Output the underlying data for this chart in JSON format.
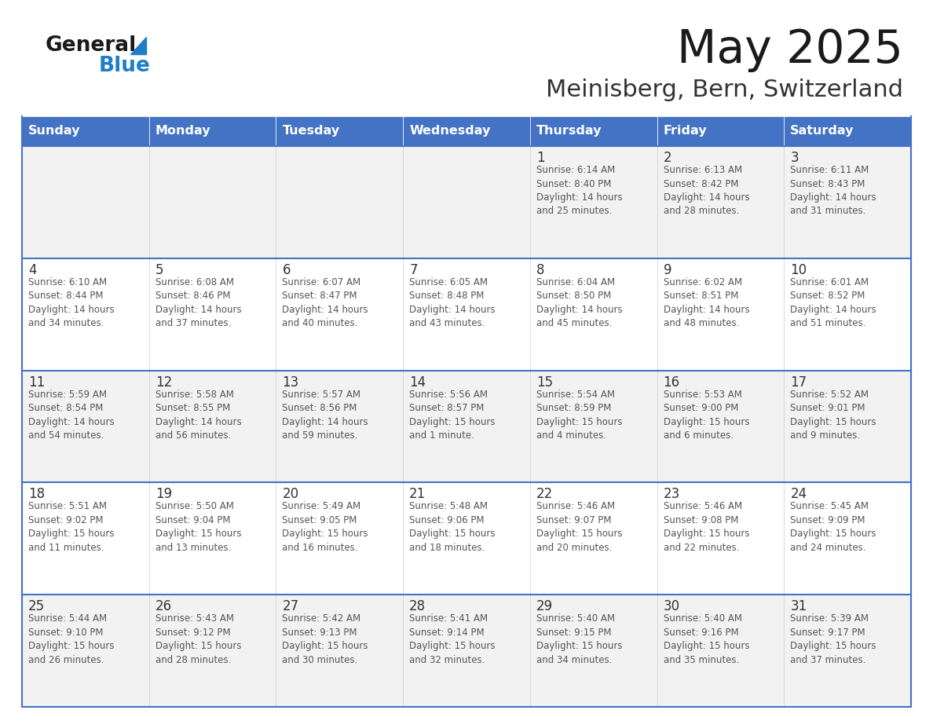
{
  "title": "May 2025",
  "subtitle": "Meinisberg, Bern, Switzerland",
  "days_of_week": [
    "Sunday",
    "Monday",
    "Tuesday",
    "Wednesday",
    "Thursday",
    "Friday",
    "Saturday"
  ],
  "header_bg": "#4472C4",
  "header_text_color": "#FFFFFF",
  "cell_bg_even": "#F2F2F2",
  "cell_bg_odd": "#FFFFFF",
  "row_border_color": "#4472C4",
  "col_border_color": "#CCCCCC",
  "day_number_color": "#333333",
  "cell_text_color": "#555555",
  "title_color": "#1a1a1a",
  "subtitle_color": "#333333",
  "logo_text_color": "#1a1a1a",
  "logo_blue_color": "#1E7EC8",
  "calendar": [
    [
      {
        "day": null,
        "text": ""
      },
      {
        "day": null,
        "text": ""
      },
      {
        "day": null,
        "text": ""
      },
      {
        "day": null,
        "text": ""
      },
      {
        "day": 1,
        "text": "Sunrise: 6:14 AM\nSunset: 8:40 PM\nDaylight: 14 hours\nand 25 minutes."
      },
      {
        "day": 2,
        "text": "Sunrise: 6:13 AM\nSunset: 8:42 PM\nDaylight: 14 hours\nand 28 minutes."
      },
      {
        "day": 3,
        "text": "Sunrise: 6:11 AM\nSunset: 8:43 PM\nDaylight: 14 hours\nand 31 minutes."
      }
    ],
    [
      {
        "day": 4,
        "text": "Sunrise: 6:10 AM\nSunset: 8:44 PM\nDaylight: 14 hours\nand 34 minutes."
      },
      {
        "day": 5,
        "text": "Sunrise: 6:08 AM\nSunset: 8:46 PM\nDaylight: 14 hours\nand 37 minutes."
      },
      {
        "day": 6,
        "text": "Sunrise: 6:07 AM\nSunset: 8:47 PM\nDaylight: 14 hours\nand 40 minutes."
      },
      {
        "day": 7,
        "text": "Sunrise: 6:05 AM\nSunset: 8:48 PM\nDaylight: 14 hours\nand 43 minutes."
      },
      {
        "day": 8,
        "text": "Sunrise: 6:04 AM\nSunset: 8:50 PM\nDaylight: 14 hours\nand 45 minutes."
      },
      {
        "day": 9,
        "text": "Sunrise: 6:02 AM\nSunset: 8:51 PM\nDaylight: 14 hours\nand 48 minutes."
      },
      {
        "day": 10,
        "text": "Sunrise: 6:01 AM\nSunset: 8:52 PM\nDaylight: 14 hours\nand 51 minutes."
      }
    ],
    [
      {
        "day": 11,
        "text": "Sunrise: 5:59 AM\nSunset: 8:54 PM\nDaylight: 14 hours\nand 54 minutes."
      },
      {
        "day": 12,
        "text": "Sunrise: 5:58 AM\nSunset: 8:55 PM\nDaylight: 14 hours\nand 56 minutes."
      },
      {
        "day": 13,
        "text": "Sunrise: 5:57 AM\nSunset: 8:56 PM\nDaylight: 14 hours\nand 59 minutes."
      },
      {
        "day": 14,
        "text": "Sunrise: 5:56 AM\nSunset: 8:57 PM\nDaylight: 15 hours\nand 1 minute."
      },
      {
        "day": 15,
        "text": "Sunrise: 5:54 AM\nSunset: 8:59 PM\nDaylight: 15 hours\nand 4 minutes."
      },
      {
        "day": 16,
        "text": "Sunrise: 5:53 AM\nSunset: 9:00 PM\nDaylight: 15 hours\nand 6 minutes."
      },
      {
        "day": 17,
        "text": "Sunrise: 5:52 AM\nSunset: 9:01 PM\nDaylight: 15 hours\nand 9 minutes."
      }
    ],
    [
      {
        "day": 18,
        "text": "Sunrise: 5:51 AM\nSunset: 9:02 PM\nDaylight: 15 hours\nand 11 minutes."
      },
      {
        "day": 19,
        "text": "Sunrise: 5:50 AM\nSunset: 9:04 PM\nDaylight: 15 hours\nand 13 minutes."
      },
      {
        "day": 20,
        "text": "Sunrise: 5:49 AM\nSunset: 9:05 PM\nDaylight: 15 hours\nand 16 minutes."
      },
      {
        "day": 21,
        "text": "Sunrise: 5:48 AM\nSunset: 9:06 PM\nDaylight: 15 hours\nand 18 minutes."
      },
      {
        "day": 22,
        "text": "Sunrise: 5:46 AM\nSunset: 9:07 PM\nDaylight: 15 hours\nand 20 minutes."
      },
      {
        "day": 23,
        "text": "Sunrise: 5:46 AM\nSunset: 9:08 PM\nDaylight: 15 hours\nand 22 minutes."
      },
      {
        "day": 24,
        "text": "Sunrise: 5:45 AM\nSunset: 9:09 PM\nDaylight: 15 hours\nand 24 minutes."
      }
    ],
    [
      {
        "day": 25,
        "text": "Sunrise: 5:44 AM\nSunset: 9:10 PM\nDaylight: 15 hours\nand 26 minutes."
      },
      {
        "day": 26,
        "text": "Sunrise: 5:43 AM\nSunset: 9:12 PM\nDaylight: 15 hours\nand 28 minutes."
      },
      {
        "day": 27,
        "text": "Sunrise: 5:42 AM\nSunset: 9:13 PM\nDaylight: 15 hours\nand 30 minutes."
      },
      {
        "day": 28,
        "text": "Sunrise: 5:41 AM\nSunset: 9:14 PM\nDaylight: 15 hours\nand 32 minutes."
      },
      {
        "day": 29,
        "text": "Sunrise: 5:40 AM\nSunset: 9:15 PM\nDaylight: 15 hours\nand 34 minutes."
      },
      {
        "day": 30,
        "text": "Sunrise: 5:40 AM\nSunset: 9:16 PM\nDaylight: 15 hours\nand 35 minutes."
      },
      {
        "day": 31,
        "text": "Sunrise: 5:39 AM\nSunset: 9:17 PM\nDaylight: 15 hours\nand 37 minutes."
      }
    ]
  ]
}
